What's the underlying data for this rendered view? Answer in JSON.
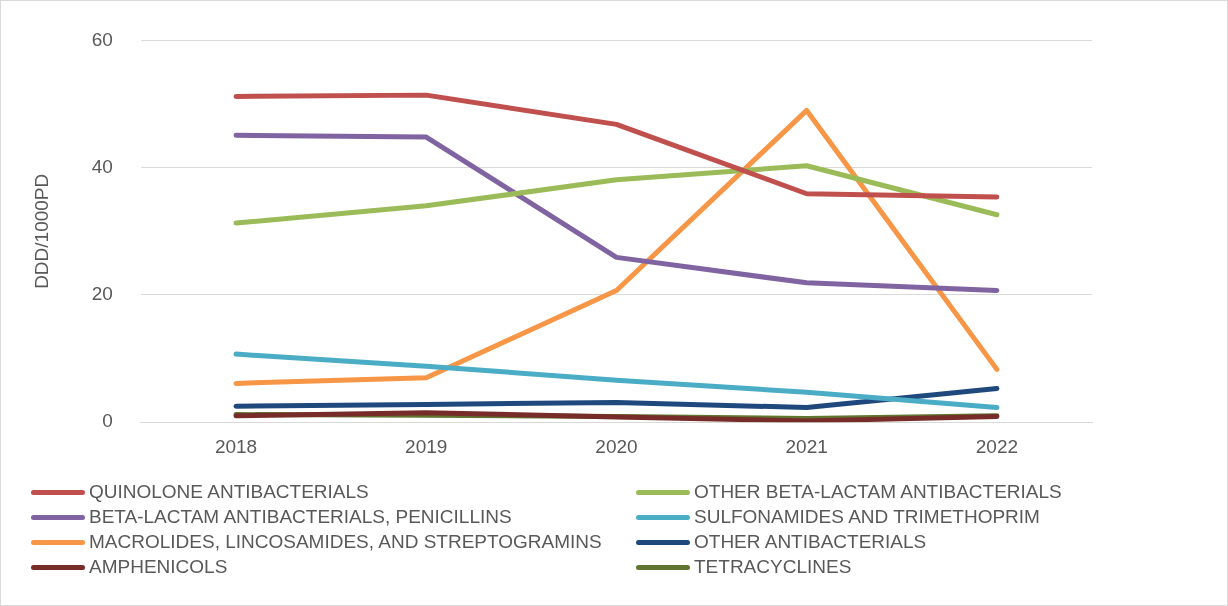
{
  "chart_data": {
    "type": "line",
    "ylabel": "DDD/1000PD",
    "categories": [
      "2018",
      "2019",
      "2020",
      "2021",
      "2022"
    ],
    "ylim": [
      0,
      60
    ],
    "yticks": [
      0,
      20,
      40,
      60
    ],
    "grid": "y",
    "legend": "bottom",
    "marker": "none",
    "line_style": "solid",
    "series": [
      {
        "name": "QUINOLONE ANTIBACTERIALS",
        "color": "#c0504d",
        "values": [
          51.2,
          51.4,
          46.8,
          35.9,
          35.4
        ]
      },
      {
        "name": "OTHER BETA-LACTAM ANTIBACTERIALS",
        "color": "#9bbb59",
        "values": [
          31.3,
          34.0,
          38.1,
          40.3,
          32.6
        ]
      },
      {
        "name": "BETA-LACTAM ANTIBACTERIALS, PENICILLINS",
        "color": "#8064a2",
        "values": [
          45.1,
          44.8,
          25.9,
          21.9,
          20.7
        ]
      },
      {
        "name": "SULFONAMIDES AND TRIMETHOPRIM",
        "color": "#4bacc6",
        "values": [
          10.7,
          8.8,
          6.6,
          4.7,
          2.3
        ]
      },
      {
        "name": "MACROLIDES, LINCOSAMIDES, AND STREPTOGRAMINS",
        "color": "#f79646",
        "values": [
          6.1,
          7.0,
          20.7,
          49.0,
          8.3
        ]
      },
      {
        "name": "OTHER ANTIBACTERIALS",
        "color": "#1f497d",
        "values": [
          2.5,
          2.8,
          3.1,
          2.3,
          5.3
        ]
      },
      {
        "name": "AMPHENICOLS",
        "color": "#772c2a",
        "values": [
          1.0,
          1.5,
          0.8,
          0.2,
          0.9
        ]
      },
      {
        "name": "TETRACYCLINES",
        "color": "#5f7530",
        "values": [
          1.2,
          1.1,
          0.9,
          0.6,
          1.0
        ]
      }
    ]
  }
}
